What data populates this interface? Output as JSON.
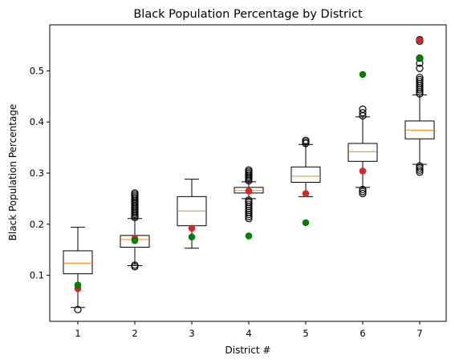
{
  "chart_data": {
    "type": "box",
    "title": "Black Population Percentage by District",
    "xlabel": "District #",
    "ylabel": "Black Population Percentage",
    "categories": [
      "1",
      "2",
      "3",
      "4",
      "5",
      "6",
      "7"
    ],
    "ylim": [
      0.01,
      0.59
    ],
    "yticks": [
      0.1,
      0.2,
      0.3,
      0.4,
      0.5
    ],
    "ytick_labels": [
      "0.1",
      "0.2",
      "0.3",
      "0.4",
      "0.5"
    ],
    "grid": false,
    "legend": "none",
    "colors": {
      "box": "#000000",
      "median": "#ff7f0e",
      "red_points": "#d62728",
      "green_points": "#008000"
    },
    "boxes": [
      {
        "district": "1",
        "whisker_low": 0.037,
        "q1": 0.103,
        "median": 0.124,
        "q3": 0.148,
        "whisker_high": 0.194,
        "outliers": [
          0.033
        ]
      },
      {
        "district": "2",
        "whisker_low": 0.119,
        "q1": 0.155,
        "median": 0.17,
        "q3": 0.178,
        "whisker_high": 0.211,
        "outliers": [
          0.117,
          0.12,
          0.213,
          0.216,
          0.219,
          0.222,
          0.225,
          0.228,
          0.231,
          0.234,
          0.237,
          0.24,
          0.243,
          0.246,
          0.249,
          0.252,
          0.255,
          0.258,
          0.261
        ]
      },
      {
        "district": "3",
        "whisker_low": 0.153,
        "q1": 0.197,
        "median": 0.226,
        "q3": 0.254,
        "whisker_high": 0.288,
        "outliers": []
      },
      {
        "district": "4",
        "whisker_low": 0.25,
        "q1": 0.261,
        "median": 0.266,
        "q3": 0.272,
        "whisker_high": 0.283,
        "outliers": [
          0.211,
          0.215,
          0.219,
          0.223,
          0.227,
          0.231,
          0.235,
          0.239,
          0.243,
          0.247,
          0.285,
          0.288,
          0.291,
          0.294,
          0.297,
          0.3,
          0.303,
          0.306
        ]
      },
      {
        "district": "5",
        "whisker_low": 0.254,
        "q1": 0.282,
        "median": 0.294,
        "q3": 0.312,
        "whisker_high": 0.356,
        "outliers": [
          0.358,
          0.361,
          0.364
        ]
      },
      {
        "district": "6",
        "whisker_low": 0.272,
        "q1": 0.323,
        "median": 0.342,
        "q3": 0.358,
        "whisker_high": 0.41,
        "outliers": [
          0.26,
          0.264,
          0.268,
          0.412,
          0.418,
          0.425
        ]
      },
      {
        "district": "7",
        "whisker_low": 0.317,
        "q1": 0.367,
        "median": 0.384,
        "q3": 0.402,
        "whisker_high": 0.453,
        "outliers": [
          0.302,
          0.306,
          0.31,
          0.314,
          0.455,
          0.459,
          0.463,
          0.467,
          0.471,
          0.475,
          0.479,
          0.483,
          0.487,
          0.505,
          0.515,
          0.525,
          0.558,
          0.561
        ]
      }
    ],
    "series": [
      {
        "color": "red",
        "values": [
          0.074,
          0.172,
          0.192,
          0.265,
          0.26,
          0.304,
          0.56
        ]
      },
      {
        "color": "green",
        "values": [
          0.081,
          0.168,
          0.175,
          0.177,
          0.203,
          0.493,
          0.525
        ]
      }
    ]
  }
}
